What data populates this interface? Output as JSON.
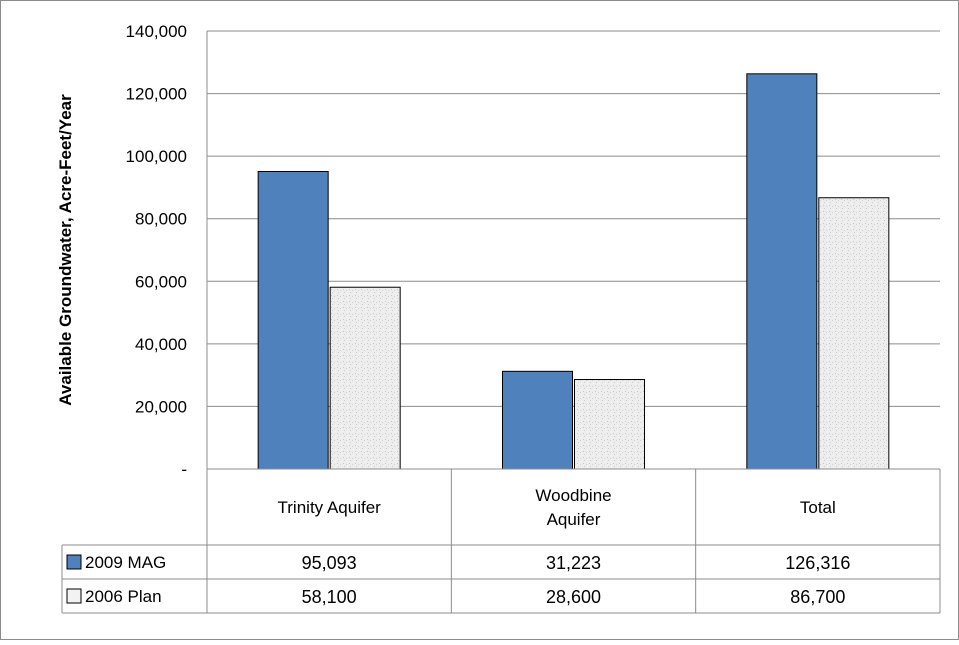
{
  "chart_data": {
    "type": "bar",
    "ylabel": "Available Groundwater, Acre-Feet/Year",
    "ylim": [
      0,
      140000
    ],
    "yticks": [
      "-",
      "20,000",
      "40,000",
      "60,000",
      "80,000",
      "100,000",
      "120,000",
      "140,000"
    ],
    "ytick_values": [
      0,
      20000,
      40000,
      60000,
      80000,
      100000,
      120000,
      140000
    ],
    "grid": true,
    "legend": "data-table-left",
    "categories": [
      "Trinity Aquifer",
      "Woodbine Aquifer",
      "Total"
    ],
    "category_lines": [
      [
        "Trinity Aquifer"
      ],
      [
        "Woodbine",
        "Aquifer"
      ],
      [
        "Total"
      ]
    ],
    "series": [
      {
        "name": "2009 MAG",
        "values": [
          95093,
          31223,
          126316
        ],
        "labels": [
          "95,093",
          "31,223",
          "126,316"
        ],
        "color": "#4f81bd"
      },
      {
        "name": "2006 Plan",
        "values": [
          58100,
          28600,
          86700
        ],
        "labels": [
          "58,100",
          "28,600",
          "86,700"
        ],
        "color": "#ececec"
      }
    ]
  }
}
